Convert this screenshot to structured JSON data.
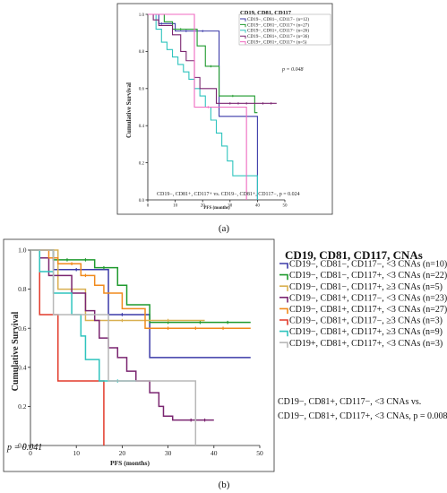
{
  "chart_data": [
    {
      "type": "line",
      "panel_label": "(a)",
      "title": "CD19, CD81, CD117",
      "xlabel": "PFS (months)",
      "ylabel": "Cumulative Survival",
      "xlim": [
        0,
        50
      ],
      "ylim": [
        0,
        1.0
      ],
      "xticks": [
        "0",
        "10",
        "20",
        "30",
        "40",
        "50"
      ],
      "yticks": [
        "0.0",
        "0.2",
        "0.4",
        "0.6",
        "0.8",
        "1.0"
      ],
      "annotations": [
        "p = 0.048",
        "CD19−, CD81+, CD117+ vs. CD19−, CD81+, CD117−, p = 0.024"
      ],
      "legend_position": "top-right",
      "series": [
        {
          "name": "CD19−, CD81−, CD117− (n=12)",
          "color": "#3b3aa8",
          "steps": [
            [
              0,
              1.0
            ],
            [
              4,
              0.95
            ],
            [
              10,
              0.91
            ],
            [
              26,
              0.45
            ],
            [
              40,
              0.0
            ]
          ],
          "censors": [
            [
              5,
              0.95
            ],
            [
              14,
              0.91
            ],
            [
              20,
              0.91
            ]
          ]
        },
        {
          "name": "CD19−, CD81−, CD117+ (n=27)",
          "color": "#1f9a2e",
          "steps": [
            [
              0,
              1.0
            ],
            [
              6,
              0.96
            ],
            [
              9,
              0.92
            ],
            [
              18,
              0.83
            ],
            [
              21,
              0.72
            ],
            [
              26,
              0.56
            ],
            [
              39,
              0.47
            ],
            [
              40,
              0.47
            ]
          ],
          "censors": [
            [
              12,
              0.92
            ],
            [
              23,
              0.72
            ],
            [
              31,
              0.56
            ]
          ]
        },
        {
          "name": "CD19−, CD81+, CD117− (n=26)",
          "color": "#2fc4be",
          "steps": [
            [
              0,
              1.0
            ],
            [
              3,
              0.92
            ],
            [
              5,
              0.85
            ],
            [
              7,
              0.81
            ],
            [
              9,
              0.77
            ],
            [
              11,
              0.73
            ],
            [
              13,
              0.69
            ],
            [
              15,
              0.65
            ],
            [
              17,
              0.6
            ],
            [
              19,
              0.56
            ],
            [
              21,
              0.5
            ],
            [
              23,
              0.43
            ],
            [
              25,
              0.36
            ],
            [
              27,
              0.29
            ],
            [
              29,
              0.21
            ],
            [
              31,
              0.13
            ],
            [
              40,
              0.0
            ]
          ],
          "censors": []
        },
        {
          "name": "CD19−, CD81+, CD117+ (n=36)",
          "color": "#7a2570",
          "steps": [
            [
              0,
              1.0
            ],
            [
              2,
              0.97
            ],
            [
              4,
              0.94
            ],
            [
              9,
              0.89
            ],
            [
              12,
              0.8
            ],
            [
              14,
              0.75
            ],
            [
              17,
              0.66
            ],
            [
              19,
              0.6
            ],
            [
              25,
              0.52
            ],
            [
              47,
              0.52
            ]
          ],
          "censors": [
            [
              30,
              0.52
            ],
            [
              33,
              0.52
            ],
            [
              36,
              0.52
            ],
            [
              42,
              0.52
            ],
            [
              45,
              0.52
            ]
          ]
        },
        {
          "name": "CD19+, CD81+, CD117+ (n=5)",
          "color": "#f06ac0",
          "steps": [
            [
              0,
              1.0
            ],
            [
              17,
              0.5
            ],
            [
              36,
              0.0
            ]
          ],
          "censors": [
            [
              22,
              0.5
            ]
          ]
        }
      ]
    },
    {
      "type": "line",
      "panel_label": "(b)",
      "title": "CD19, CD81, CD117, CNAs",
      "xlabel": "PFS (months)",
      "ylabel": "Cumulative Survival",
      "xlim": [
        0,
        50
      ],
      "ylim": [
        0,
        1.0
      ],
      "xticks": [
        "0",
        "10",
        "20",
        "30",
        "40",
        "50"
      ],
      "yticks": [
        "0.0",
        "0.2",
        "0.4",
        "0.6",
        "0.8",
        "1.0"
      ],
      "annotations": [
        "p = 0.041",
        "CD19−, CD81+, CD117−, <3 CNAs vs.",
        "CD19−, CD81+, CD117+, <3 CNAs, p = 0.008"
      ],
      "legend_position": "right",
      "series": [
        {
          "name": "CD19−, CD81−, CD117−, <3 CNAs (n=10)",
          "color": "#3b3aa8",
          "steps": [
            [
              0,
              1.0
            ],
            [
              5,
              0.9
            ],
            [
              17,
              0.67
            ],
            [
              26,
              0.45
            ],
            [
              48,
              0.45
            ]
          ],
          "censors": [
            [
              10,
              0.9
            ],
            [
              20,
              0.67
            ]
          ]
        },
        {
          "name": "CD19−, CD81−, CD117+, <3 CNAs (n=22)",
          "color": "#1f9a2e",
          "steps": [
            [
              0,
              1.0
            ],
            [
              5,
              0.95
            ],
            [
              14,
              0.91
            ],
            [
              19,
              0.82
            ],
            [
              21,
              0.72
            ],
            [
              26,
              0.63
            ],
            [
              48,
              0.63
            ]
          ],
          "censors": [
            [
              8,
              0.95
            ],
            [
              12,
              0.95
            ],
            [
              16,
              0.91
            ],
            [
              30,
              0.63
            ],
            [
              37,
              0.63
            ],
            [
              43,
              0.63
            ]
          ]
        },
        {
          "name": "CD19−, CD81−, CD117+, ≥3 CNAs (n=5)",
          "color": "#d9b050",
          "steps": [
            [
              0,
              1.0
            ],
            [
              6,
              0.8
            ],
            [
              10,
              0.8
            ],
            [
              12,
              0.64
            ],
            [
              38,
              0.64
            ]
          ],
          "censors": [
            [
              20,
              0.64
            ],
            [
              30,
              0.64
            ]
          ]
        },
        {
          "name": "CD19−, CD81+, CD117−, <3 CNAs (n=23)",
          "color": "#7a2570",
          "steps": [
            [
              0,
              1.0
            ],
            [
              2,
              0.96
            ],
            [
              4,
              0.87
            ],
            [
              9,
              0.78
            ],
            [
              12,
              0.69
            ],
            [
              14,
              0.64
            ],
            [
              15,
              0.55
            ],
            [
              17,
              0.5
            ],
            [
              19,
              0.45
            ],
            [
              21,
              0.38
            ],
            [
              23,
              0.33
            ],
            [
              26,
              0.27
            ],
            [
              28,
              0.2
            ],
            [
              29,
              0.15
            ],
            [
              31,
              0.13
            ],
            [
              40,
              0.13
            ]
          ],
          "censors": [
            [
              35,
              0.13
            ],
            [
              38,
              0.13
            ]
          ]
        },
        {
          "name": "CD19−, CD81+, CD117+, <3 CNAs (n=27)",
          "color": "#f08a1c",
          "steps": [
            [
              0,
              1.0
            ],
            [
              4,
              0.96
            ],
            [
              6,
              0.93
            ],
            [
              11,
              0.87
            ],
            [
              14,
              0.82
            ],
            [
              16,
              0.78
            ],
            [
              20,
              0.7
            ],
            [
              25,
              0.6
            ],
            [
              48,
              0.6
            ]
          ],
          "censors": [
            [
              9,
              0.93
            ],
            [
              12,
              0.87
            ],
            [
              30,
              0.6
            ],
            [
              36,
              0.6
            ],
            [
              42,
              0.6
            ]
          ]
        },
        {
          "name": "CD19−, CD81+, CD117−, ≥3 CNAs (n=3)",
          "color": "#e23a2a",
          "steps": [
            [
              0,
              1.0
            ],
            [
              2,
              0.67
            ],
            [
              6,
              0.33
            ],
            [
              16,
              0.0
            ]
          ],
          "censors": []
        },
        {
          "name": "CD19−, CD81+, CD117+, ≥3 CNAs (n=9)",
          "color": "#2fc4be",
          "steps": [
            [
              0,
              1.0
            ],
            [
              2,
              0.89
            ],
            [
              5,
              0.78
            ],
            [
              9,
              0.67
            ],
            [
              11,
              0.56
            ],
            [
              12,
              0.44
            ],
            [
              15,
              0.33
            ],
            [
              23,
              0.33
            ]
          ],
          "censors": [
            [
              19,
              0.33
            ]
          ]
        },
        {
          "name": "CD19+, CD81+, CD117+, <3 CNAs (n=3)",
          "color": "#b8b8b8",
          "steps": [
            [
              0,
              1.0
            ],
            [
              5,
              0.67
            ],
            [
              17,
              0.33
            ],
            [
              36,
              0.0
            ]
          ],
          "censors": []
        }
      ]
    }
  ]
}
